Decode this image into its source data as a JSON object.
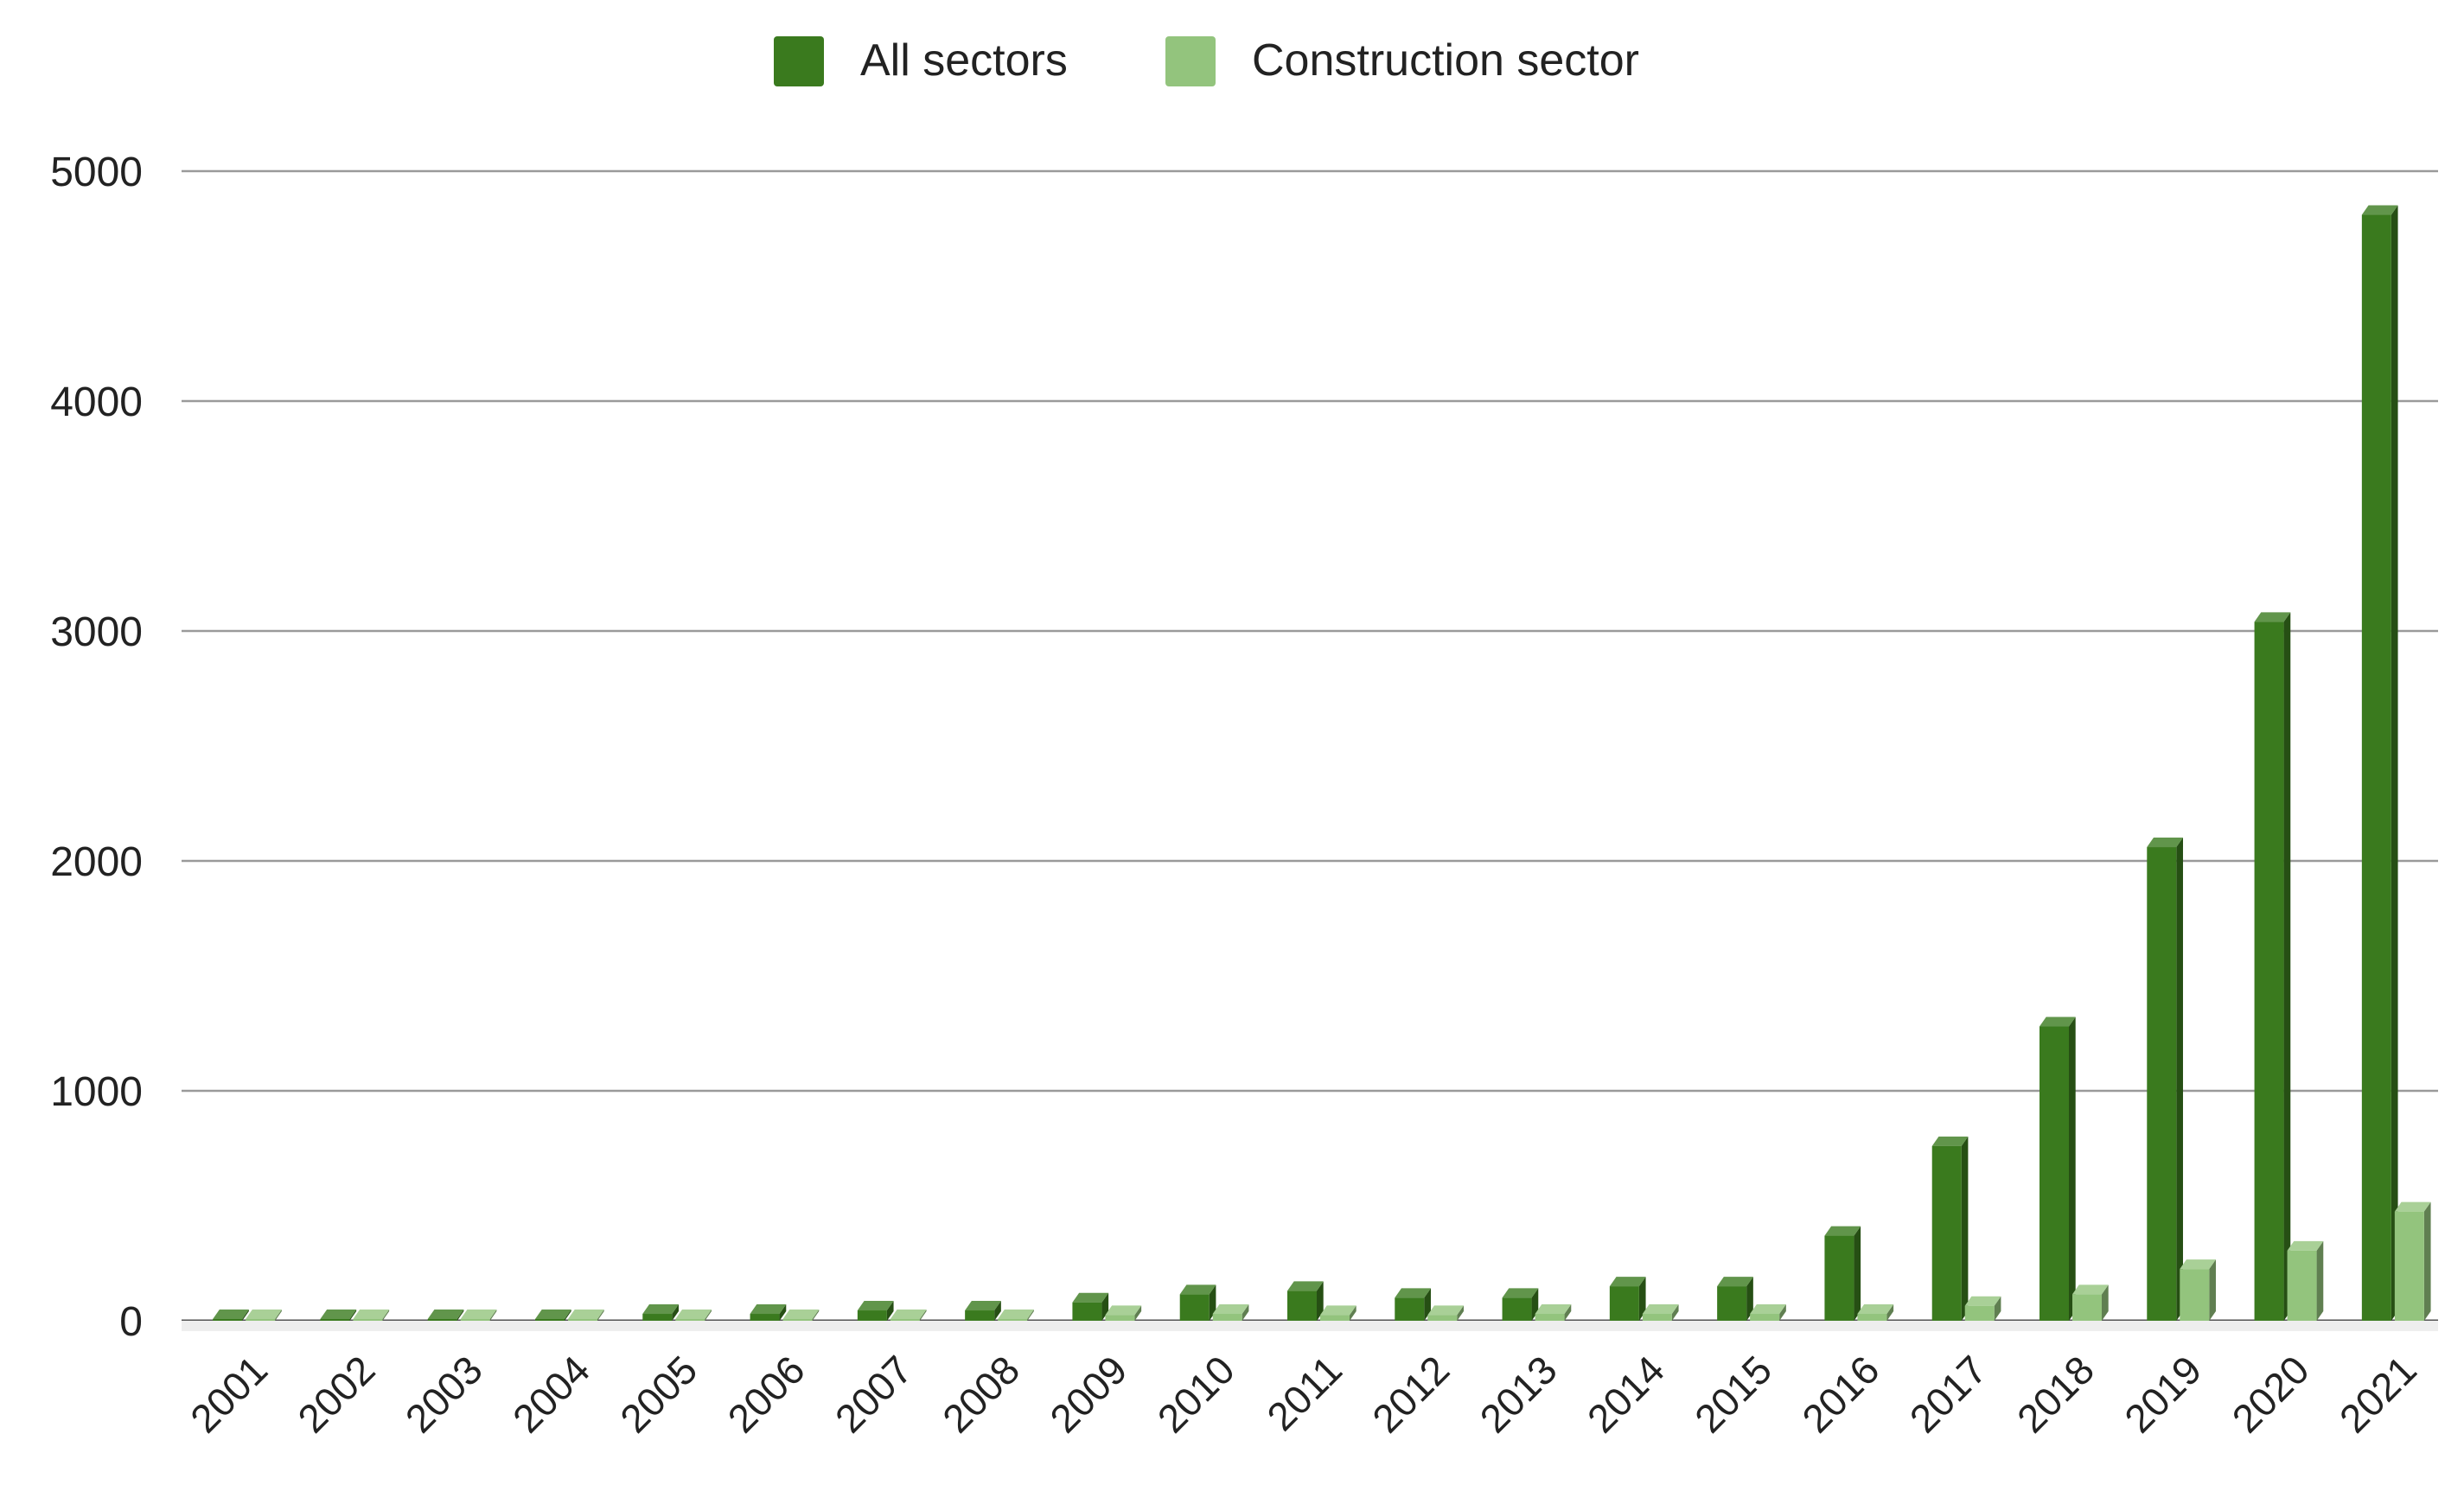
{
  "chart_data": {
    "type": "bar",
    "categories": [
      "2001",
      "2002",
      "2003",
      "2004",
      "2005",
      "2006",
      "2007",
      "2008",
      "2009",
      "2010",
      "2011",
      "2012",
      "2013",
      "2014",
      "2015",
      "2016",
      "2017",
      "2018",
      "2019",
      "2020",
      "2021"
    ],
    "series": [
      {
        "name": "All sectors",
        "color": "#3a7a1e",
        "values": [
          3,
          4,
          4,
          5,
          30,
          30,
          45,
          45,
          80,
          115,
          130,
          100,
          100,
          150,
          150,
          370,
          760,
          1280,
          2060,
          3040,
          4810
        ]
      },
      {
        "name": "Construction sector",
        "color": "#93c47d",
        "values": [
          2,
          2,
          2,
          2,
          4,
          4,
          5,
          5,
          25,
          30,
          25,
          25,
          30,
          30,
          30,
          30,
          65,
          115,
          225,
          305,
          475
        ]
      }
    ],
    "yticks": [
      "0",
      "1000",
      "2000",
      "3000",
      "4000",
      "5000"
    ],
    "ylim": [
      0,
      5000
    ],
    "grid": true,
    "legend_position": "top",
    "title": "",
    "xlabel": "",
    "ylabel": ""
  }
}
